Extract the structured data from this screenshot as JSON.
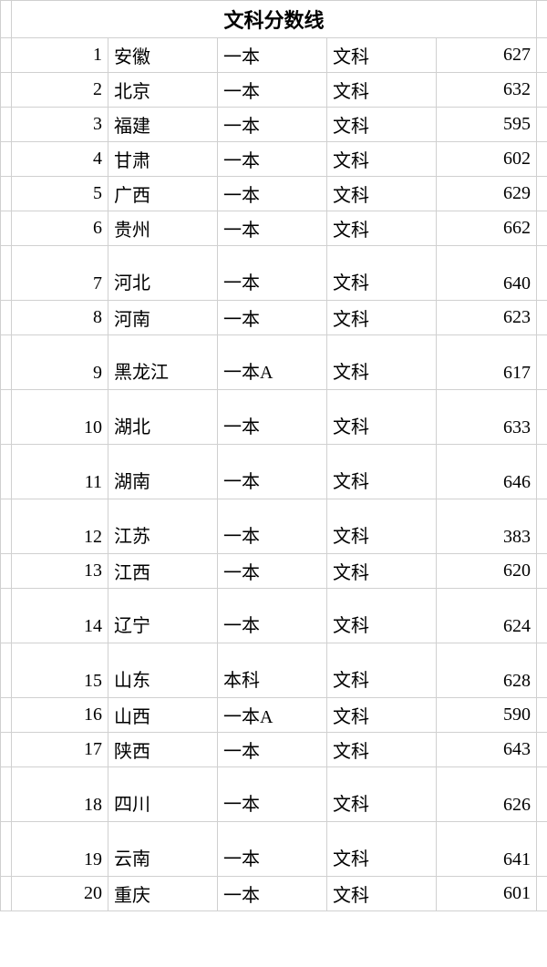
{
  "title": "文科分数线",
  "columns": {
    "index_width": 106,
    "province_width": 120,
    "tier_width": 120,
    "subject_width": 120,
    "score_width": 110
  },
  "styling": {
    "border_color": "#d0d0d0",
    "background_color": "#ffffff",
    "text_color": "#000000",
    "font_size": 20,
    "title_font_size": 22,
    "title_font_weight": "bold",
    "row_height_normal": 32,
    "row_height_tall": 60
  },
  "rows": [
    {
      "index": "1",
      "province": "安徽",
      "tier": "一本",
      "subject": "文科",
      "score": "627",
      "tall": false
    },
    {
      "index": "2",
      "province": "北京",
      "tier": "一本",
      "subject": "文科",
      "score": "632",
      "tall": false
    },
    {
      "index": "3",
      "province": "福建",
      "tier": "一本",
      "subject": "文科",
      "score": "595",
      "tall": false
    },
    {
      "index": "4",
      "province": "甘肃",
      "tier": "一本",
      "subject": "文科",
      "score": "602",
      "tall": false
    },
    {
      "index": "5",
      "province": "广西",
      "tier": "一本",
      "subject": "文科",
      "score": "629",
      "tall": false
    },
    {
      "index": "6",
      "province": "贵州",
      "tier": "一本",
      "subject": "文科",
      "score": "662",
      "tall": false
    },
    {
      "index": "7",
      "province": "河北",
      "tier": "一本",
      "subject": "文科",
      "score": "640",
      "tall": true
    },
    {
      "index": "8",
      "province": "河南",
      "tier": "一本",
      "subject": "文科",
      "score": "623",
      "tall": false
    },
    {
      "index": "9",
      "province": "黑龙江",
      "tier": "一本A",
      "subject": "文科",
      "score": "617",
      "tall": true
    },
    {
      "index": "10",
      "province": "湖北",
      "tier": "一本",
      "subject": "文科",
      "score": "633",
      "tall": true
    },
    {
      "index": "11",
      "province": "湖南",
      "tier": "一本",
      "subject": "文科",
      "score": "646",
      "tall": true
    },
    {
      "index": "12",
      "province": "江苏",
      "tier": "一本",
      "subject": "文科",
      "score": "383",
      "tall": true
    },
    {
      "index": "13",
      "province": "江西",
      "tier": "一本",
      "subject": "文科",
      "score": "620",
      "tall": false
    },
    {
      "index": "14",
      "province": "辽宁",
      "tier": "一本",
      "subject": "文科",
      "score": "624",
      "tall": true
    },
    {
      "index": "15",
      "province": "山东",
      "tier": "本科",
      "subject": "文科",
      "score": "628",
      "tall": true
    },
    {
      "index": "16",
      "province": "山西",
      "tier": "一本A",
      "subject": "文科",
      "score": "590",
      "tall": false
    },
    {
      "index": "17",
      "province": "陕西",
      "tier": "一本",
      "subject": "文科",
      "score": "643",
      "tall": false
    },
    {
      "index": "18",
      "province": "四川",
      "tier": "一本",
      "subject": "文科",
      "score": "626",
      "tall": true
    },
    {
      "index": "19",
      "province": "云南",
      "tier": "一本",
      "subject": "文科",
      "score": "641",
      "tall": true
    },
    {
      "index": "20",
      "province": "重庆",
      "tier": "一本",
      "subject": "文科",
      "score": "601",
      "tall": false
    }
  ]
}
